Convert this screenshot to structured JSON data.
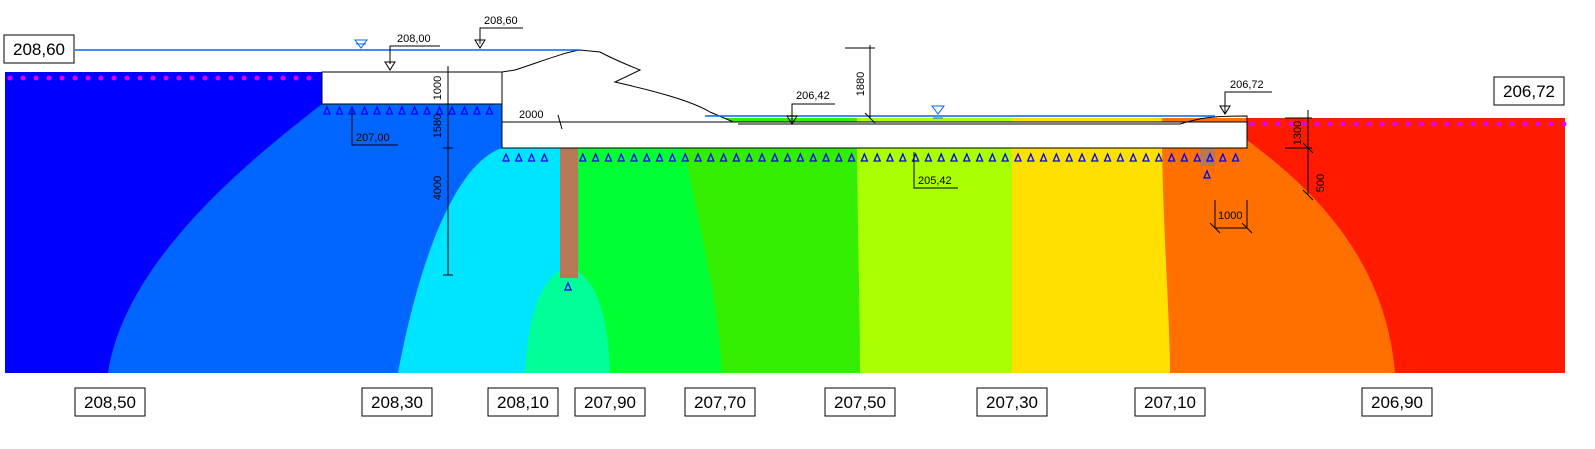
{
  "water_levels": {
    "upstream": "208,60",
    "downstream": "206,72"
  },
  "elevations": {
    "upstream_water_marker": "208,60",
    "apron_top": "208,00",
    "apron_bottom": "207,00",
    "downstream_water": "206,42",
    "tailwater_marker": "206,72",
    "foundation": "205,42"
  },
  "dimensions": {
    "apron_thickness": "1000",
    "gap_depth": "1580",
    "sheet_pile_depth": "4000",
    "offset": "2000",
    "drop_height": "1880",
    "end_depth": "1300",
    "end_sill": "500",
    "end_width": "1000"
  },
  "contour_labels": [
    "208,50",
    "208,30",
    "208,10",
    "207,90",
    "207,70",
    "207,50",
    "207,30",
    "207,10",
    "206,90"
  ]
}
